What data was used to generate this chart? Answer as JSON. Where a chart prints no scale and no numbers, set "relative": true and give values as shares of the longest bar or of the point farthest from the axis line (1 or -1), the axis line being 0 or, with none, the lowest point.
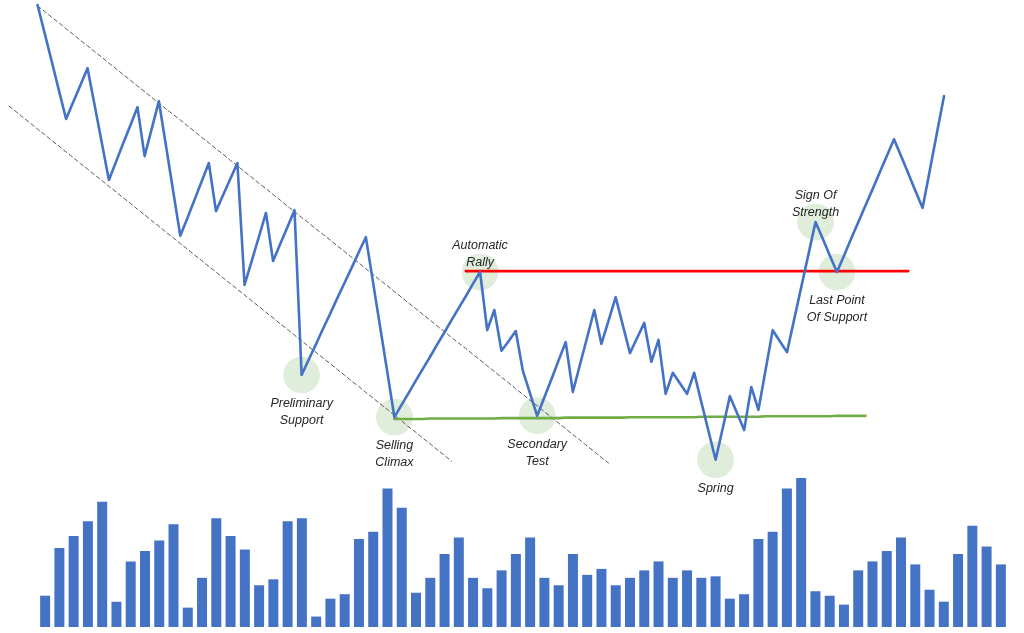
{
  "chart_data": [
    {
      "type": "line",
      "relative": true,
      "categories": [
        null,
        null,
        null,
        null,
        null,
        null,
        null,
        null,
        null,
        null,
        null,
        null,
        null,
        null,
        null,
        null,
        null,
        null,
        null,
        null,
        null,
        null,
        null,
        null,
        null,
        null,
        null,
        null,
        null,
        null,
        null,
        null,
        null,
        null,
        null,
        null,
        null,
        null,
        null,
        null,
        null,
        null,
        null,
        null,
        null,
        null,
        null,
        null,
        null,
        null,
        null,
        null,
        null,
        null,
        null,
        null,
        null,
        null,
        null,
        null,
        null,
        null,
        null,
        null,
        null,
        null,
        null,
        null,
        null,
        null,
        null,
        null,
        null,
        null,
        null,
        null,
        null,
        null,
        null,
        null,
        null,
        null,
        null,
        null,
        null,
        null,
        null,
        null,
        null,
        null,
        null,
        null,
        null,
        null,
        null,
        null,
        null,
        null,
        null,
        null,
        null,
        null,
        null,
        null,
        null,
        null,
        null,
        null,
        null,
        null,
        null,
        null,
        null,
        null,
        null,
        null,
        null,
        null,
        null,
        null,
        null,
        null,
        null,
        null,
        null,
        null,
        null,
        null,
        null,
        null,
        null,
        null
      ],
      "series": [
        {
          "color": "#595959",
          "line_style": "dashed",
          "values": [
            null,
            null,
            null,
            null,
            0.998,
            0.986,
            0.973,
            0.961,
            0.948,
            0.936,
            0.923,
            0.911,
            0.898,
            0.886,
            0.873,
            0.861,
            0.848,
            0.836,
            0.823,
            0.811,
            0.798,
            0.786,
            0.773,
            0.761,
            0.749,
            0.736,
            0.724,
            0.711,
            0.699,
            0.686,
            0.674,
            0.661,
            0.649,
            0.636,
            0.624,
            0.611,
            0.599,
            0.586,
            0.574,
            0.561,
            0.549,
            0.536,
            0.524,
            0.511,
            0.499,
            0.487,
            0.474,
            0.462,
            0.449,
            0.437,
            0.424,
            0.412,
            0.399,
            0.387,
            0.374,
            0.362,
            0.349,
            0.337,
            0.324,
            0.312,
            0.299,
            0.287,
            0.274,
            0.262,
            0.25,
            0.237,
            0.225,
            0.212,
            0.2,
            0.187,
            0.175,
            0.162,
            0.15,
            0.137,
            0.125,
            0.112,
            0.1,
            0.087,
            0.075,
            0.062,
            0.05,
            0.037,
            0.025,
            0.012,
            0,
            null,
            null,
            null,
            null,
            null,
            null,
            null,
            null,
            null,
            null,
            null,
            null,
            null,
            null,
            null,
            null,
            null,
            null,
            null,
            null,
            null,
            null,
            null,
            null,
            null,
            null,
            null,
            null,
            null,
            null,
            null,
            null,
            null,
            null,
            null,
            null,
            null,
            null,
            null,
            null,
            null,
            null,
            null,
            null,
            null,
            null,
            null
          ]
        },
        {
          "color": "#595959",
          "line_style": "dashed",
          "values": [
            0.779,
            0.767,
            0.754,
            0.742,
            0.729,
            0.717,
            0.704,
            0.692,
            0.679,
            0.667,
            0.654,
            0.642,
            0.629,
            0.617,
            0.604,
            0.592,
            0.579,
            0.567,
            0.554,
            0.542,
            0.529,
            0.517,
            0.504,
            0.492,
            0.479,
            0.467,
            0.454,
            0.442,
            0.429,
            0.417,
            0.404,
            0.392,
            0.379,
            0.367,
            0.354,
            0.342,
            0.329,
            0.317,
            0.304,
            0.292,
            0.279,
            0.267,
            0.254,
            0.242,
            0.229,
            0.217,
            0.204,
            0.192,
            0.179,
            0.167,
            0.154,
            0.142,
            0.129,
            0.117,
            0.104,
            0.092,
            0.079,
            0.067,
            0.054,
            0.042,
            0.029,
            0.017,
            0.004,
            null,
            null,
            null,
            null,
            null,
            null,
            null,
            null,
            null,
            null,
            null,
            null,
            null,
            null,
            null,
            null,
            null,
            null,
            null,
            null,
            null,
            null,
            null,
            null,
            null,
            null,
            null,
            null,
            null,
            null,
            null,
            null,
            null,
            null,
            null,
            null,
            null,
            null,
            null,
            null,
            null,
            null,
            null,
            null,
            null,
            null,
            null,
            null,
            null,
            null,
            null,
            null,
            null,
            null,
            null,
            null,
            null,
            null,
            null,
            null,
            null,
            null,
            null,
            null,
            null,
            null,
            null,
            null,
            null
          ]
        },
        {
          "color": "#ff0000",
          "values": [
            null,
            null,
            null,
            null,
            null,
            null,
            null,
            null,
            null,
            null,
            null,
            null,
            null,
            null,
            null,
            null,
            null,
            null,
            null,
            null,
            null,
            null,
            null,
            null,
            null,
            null,
            null,
            null,
            null,
            null,
            null,
            null,
            null,
            null,
            null,
            null,
            null,
            null,
            null,
            null,
            null,
            null,
            null,
            null,
            null,
            null,
            null,
            null,
            null,
            null,
            null,
            null,
            null,
            null,
            null,
            null,
            null,
            null,
            null,
            null,
            null,
            null,
            null,
            null,
            0.419,
            0.419,
            0.419,
            0.419,
            0.419,
            0.419,
            0.419,
            0.419,
            0.419,
            0.419,
            0.419,
            0.419,
            0.419,
            0.419,
            0.419,
            0.419,
            0.419,
            0.419,
            0.419,
            0.419,
            0.419,
            0.419,
            0.419,
            0.419,
            0.419,
            0.419,
            0.419,
            0.419,
            0.419,
            0.419,
            0.419,
            0.419,
            0.419,
            0.419,
            0.419,
            0.419,
            0.419,
            0.419,
            0.419,
            0.419,
            0.419,
            0.419,
            0.419,
            0.419,
            0.419,
            0.419,
            0.419,
            0.419,
            0.419,
            0.419,
            0.419,
            0.419,
            0.419,
            0.419,
            0.419,
            0.419,
            0.419,
            0.419,
            0.419,
            0.419,
            0.419,
            0.419,
            0.419,
            null,
            null,
            null,
            null,
            null
          ]
        },
        {
          "color": "#70ad47",
          "values": [
            null,
            null,
            null,
            null,
            null,
            null,
            null,
            null,
            null,
            null,
            null,
            null,
            null,
            null,
            null,
            null,
            null,
            null,
            null,
            null,
            null,
            null,
            null,
            null,
            null,
            null,
            null,
            null,
            null,
            null,
            null,
            null,
            null,
            null,
            null,
            null,
            null,
            null,
            null,
            null,
            null,
            null,
            null,
            null,
            null,
            null,
            null,
            null,
            null,
            null,
            null,
            null,
            null,
            null,
            0.096,
            0.096,
            0.096,
            0.096,
            0.096,
            0.097,
            0.097,
            0.097,
            0.097,
            0.097,
            0.097,
            0.097,
            0.097,
            0.097,
            0.097,
            0.098,
            0.098,
            0.098,
            0.098,
            0.098,
            0.098,
            0.098,
            0.098,
            0.098,
            0.099,
            0.099,
            0.099,
            0.099,
            0.099,
            0.099,
            0.099,
            0.099,
            0.099,
            0.1,
            0.1,
            0.1,
            0.1,
            0.1,
            0.1,
            0.1,
            0.1,
            0.1,
            0.1,
            0.101,
            0.101,
            0.101,
            0.101,
            0.101,
            0.101,
            0.101,
            0.101,
            0.101,
            0.102,
            0.102,
            0.102,
            0.102,
            0.102,
            0.102,
            0.102,
            0.102,
            0.102,
            0.102,
            0.103,
            0.103,
            0.103,
            0.103,
            0.103,
            null,
            null,
            null,
            null,
            null,
            null,
            null,
            null,
            null,
            null,
            null
          ]
        },
        {
          "color": "#4472c4",
          "values": [
            null,
            null,
            null,
            null,
            1.0,
            0.938,
            0.876,
            0.813,
            0.751,
            0.788,
            0.825,
            0.862,
            0.781,
            0.699,
            0.618,
            0.658,
            0.698,
            0.737,
            0.777,
            0.67,
            0.73,
            0.79,
            0.692,
            0.594,
            0.496,
            0.535,
            0.575,
            0.615,
            0.655,
            0.55,
            0.585,
            0.62,
            0.655,
            0.389,
            0.441,
            0.493,
            0.546,
            0.441,
            0.478,
            0.515,
            0.552,
            0.192,
            0.226,
            0.259,
            0.293,
            0.326,
            0.36,
            0.393,
            0.426,
            0.46,
            0.493,
            0.395,
            0.297,
            0.199,
            0.1,
            0.127,
            0.153,
            0.18,
            0.206,
            0.232,
            0.259,
            0.285,
            0.312,
            0.338,
            0.364,
            0.391,
            0.417,
            0.29,
            0.334,
            0.245,
            0.266,
            0.288,
            0.201,
            0.152,
            0.103,
            0.143,
            0.183,
            0.224,
            0.264,
            0.155,
            0.215,
            0.274,
            0.334,
            0.26,
            0.311,
            0.362,
            0.301,
            0.24,
            0.273,
            0.306,
            0.221,
            0.269,
            0.151,
            0.197,
            0.174,
            0.151,
            0.197,
            0.133,
            0.07,
            0.007,
            0.076,
            0.146,
            0.109,
            0.072,
            0.166,
            0.116,
            0.203,
            0.29,
            0.266,
            0.242,
            0.313,
            0.384,
            0.455,
            0.526,
            0.49,
            0.453,
            0.417,
            0.453,
            0.49,
            0.526,
            0.562,
            0.598,
            0.635,
            0.671,
            0.707,
            0.67,
            0.632,
            0.594,
            0.557,
            0.638,
            0.72,
            0.801
          ]
        }
      ],
      "annotations": [
        "Preliminary Support",
        "Selling Climax",
        "Automatic Rally",
        "Secondary Test",
        "Spring",
        "Sign Of Strength",
        "Last Point Of Support"
      ]
    },
    {
      "type": "bar",
      "relative": true,
      "color": "#4472c4",
      "categories": [
        null,
        null,
        null,
        null,
        null,
        null,
        null,
        null,
        null,
        null,
        null,
        null,
        null,
        null,
        null,
        null,
        null,
        null,
        null,
        null,
        null,
        null,
        null,
        null,
        null,
        null,
        null,
        null,
        null,
        null,
        null,
        null,
        null,
        null,
        null,
        null,
        null,
        null,
        null,
        null,
        null,
        null,
        null,
        null,
        null,
        null,
        null,
        null,
        null,
        null,
        null,
        null,
        null,
        null,
        null,
        null,
        null,
        null,
        null,
        null,
        null,
        null,
        null,
        null,
        null,
        null,
        null,
        null
      ],
      "values": [
        0.21,
        0.53,
        0.61,
        0.71,
        0.84,
        0.17,
        0.44,
        0.51,
        0.58,
        0.69,
        0.13,
        0.33,
        0.73,
        0.61,
        0.52,
        0.28,
        0.32,
        0.71,
        0.73,
        0.07,
        0.19,
        0.22,
        0.59,
        0.64,
        0.93,
        0.8,
        0.23,
        0.33,
        0.49,
        0.6,
        0.33,
        0.26,
        0.38,
        0.49,
        0.6,
        0.33,
        0.28,
        0.49,
        0.35,
        0.39,
        0.28,
        0.33,
        0.38,
        0.44,
        0.33,
        0.38,
        0.33,
        0.34,
        0.19,
        0.22,
        0.59,
        0.64,
        0.93,
        1,
        0.24,
        0.21,
        0.15,
        0.38,
        0.44,
        0.51,
        0.6,
        0.42,
        0.25,
        0.17,
        0.49,
        0.68,
        0.54,
        0.42
      ]
    }
  ]
}
